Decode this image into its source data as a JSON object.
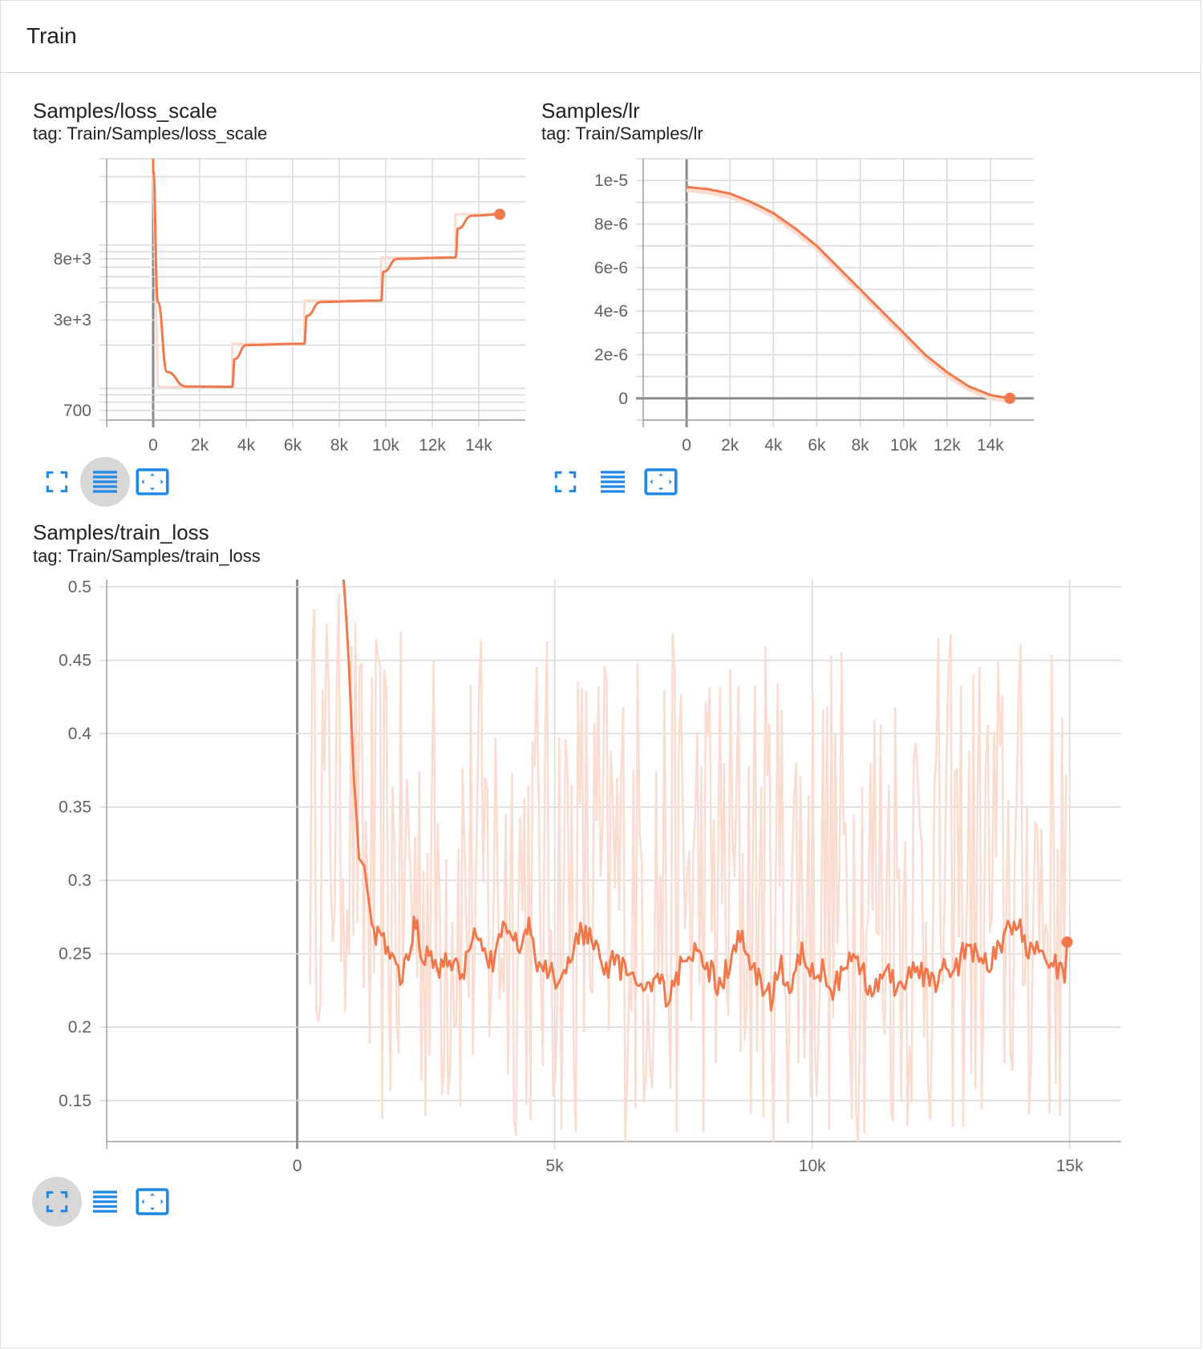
{
  "header": {
    "title": "Train"
  },
  "colors": {
    "series": "#f0784b",
    "raw": "#fbdcd1",
    "grid": "#d9d9d9",
    "axis": "#9e9e9e",
    "icon": "#1e88e5"
  },
  "icons": [
    "fullscreen-icon",
    "toggle-log-scale-icon",
    "fit-domain-icon"
  ],
  "cards": [
    {
      "title": "Samples/loss_scale",
      "tag": "tag: Train/Samples/loss_scale"
    },
    {
      "title": "Samples/lr",
      "tag": "tag: Train/Samples/lr"
    },
    {
      "title": "Samples/train_loss",
      "tag": "tag: Train/Samples/train_loss"
    }
  ],
  "chart_data": [
    {
      "type": "line",
      "title": "Samples/loss_scale",
      "x_scale": "linear",
      "y_scale": "log",
      "xlim": [
        -2000,
        16000
      ],
      "ylim": [
        600,
        40000
      ],
      "x_tick_labels": [
        "0",
        "2k",
        "4k",
        "6k",
        "8k",
        "10k",
        "12k",
        "14k"
      ],
      "y_tick_labels": [
        "700",
        "3e+3",
        "8e+3"
      ],
      "series": [
        {
          "values_smoothed": [
            [
              0,
              32768
            ],
            [
              200,
              4000
            ],
            [
              600,
              1300
            ],
            [
              1400,
              1030
            ],
            [
              3400,
              1024
            ],
            [
              3500,
              1600
            ],
            [
              4000,
              2000
            ],
            [
              6500,
              2048
            ],
            [
              6600,
              3200
            ],
            [
              7200,
              4000
            ],
            [
              9800,
              4096
            ],
            [
              9900,
              6500
            ],
            [
              10500,
              8000
            ],
            [
              13000,
              8192
            ],
            [
              13100,
              13000
            ],
            [
              13700,
              16000
            ],
            [
              14900,
              16384
            ]
          ],
          "values_raw": [
            [
              0,
              32768
            ],
            [
              200,
              1024
            ],
            [
              3400,
              1024
            ],
            [
              3400,
              2048
            ],
            [
              6500,
              2048
            ],
            [
              6500,
              4096
            ],
            [
              9800,
              4096
            ],
            [
              9800,
              8192
            ],
            [
              13000,
              8192
            ],
            [
              13000,
              16384
            ],
            [
              14900,
              16384
            ]
          ]
        }
      ]
    },
    {
      "type": "line",
      "title": "Samples/lr",
      "x_scale": "linear",
      "y_scale": "linear",
      "xlim": [
        -2000,
        16000
      ],
      "ylim": [
        -1e-06,
        1.1e-05
      ],
      "x_tick_labels": [
        "0",
        "2k",
        "4k",
        "6k",
        "8k",
        "10k",
        "12k",
        "14k"
      ],
      "y_tick_labels": [
        "0",
        "2e-6",
        "4e-6",
        "6e-6",
        "8e-6",
        "1e-5"
      ],
      "series": [
        {
          "x": [
            0,
            1000,
            2000,
            3000,
            4000,
            5000,
            6000,
            7000,
            8000,
            9000,
            10000,
            11000,
            12000,
            13000,
            14000,
            14900
          ],
          "y": [
            9.7e-06,
            9.6e-06,
            9.4e-06,
            9e-06,
            8.5e-06,
            7.8e-06,
            7e-06,
            6e-06,
            5e-06,
            4e-06,
            3e-06,
            2e-06,
            1.2e-06,
            5.5e-07,
            1.5e-07,
            0
          ]
        }
      ]
    },
    {
      "type": "line",
      "title": "Samples/train_loss",
      "x_scale": "linear",
      "y_scale": "linear",
      "xlim": [
        -3700,
        16000
      ],
      "ylim": [
        0.122,
        0.505
      ],
      "x_tick_labels": [
        "0",
        "5k",
        "10k",
        "15k"
      ],
      "y_tick_labels": [
        "0.15",
        "0.2",
        "0.25",
        "0.3",
        "0.35",
        "0.4",
        "0.45",
        "0.5"
      ],
      "series": [
        {
          "x": [
            900,
            1000,
            1050,
            1100,
            1150,
            1200,
            1300,
            1450,
            1600,
            1800,
            2000,
            2200,
            2300,
            2400,
            2600,
            2800,
            3000,
            3200,
            3400,
            3600,
            3800,
            4000,
            4200,
            4400,
            4500,
            4700,
            4900,
            5100,
            5300,
            5500,
            5600,
            5800,
            6000,
            6200,
            6400,
            6600,
            6800,
            7000,
            7200,
            7400,
            7600,
            7800,
            8000,
            8200,
            8400,
            8600,
            8800,
            9000,
            9200,
            9400,
            9600,
            9800,
            10000,
            10200,
            10400,
            10600,
            10800,
            11000,
            11200,
            11400,
            11600,
            11800,
            12000,
            12200,
            12400,
            12600,
            12800,
            13000,
            13200,
            13400,
            13600,
            13800,
            14000,
            14200,
            14400,
            14600,
            14800,
            14900,
            14950
          ],
          "y": [
            0.51,
            0.45,
            0.41,
            0.37,
            0.345,
            0.315,
            0.31,
            0.27,
            0.26,
            0.255,
            0.235,
            0.25,
            0.275,
            0.25,
            0.25,
            0.24,
            0.245,
            0.235,
            0.265,
            0.255,
            0.24,
            0.265,
            0.26,
            0.255,
            0.27,
            0.24,
            0.235,
            0.235,
            0.24,
            0.265,
            0.265,
            0.25,
            0.24,
            0.245,
            0.235,
            0.23,
            0.225,
            0.235,
            0.215,
            0.235,
            0.255,
            0.25,
            0.24,
            0.225,
            0.245,
            0.26,
            0.245,
            0.23,
            0.22,
            0.24,
            0.23,
            0.255,
            0.235,
            0.24,
            0.225,
            0.235,
            0.25,
            0.235,
            0.225,
            0.24,
            0.23,
            0.225,
            0.245,
            0.235,
            0.23,
            0.24,
            0.24,
            0.255,
            0.25,
            0.24,
            0.255,
            0.265,
            0.27,
            0.255,
            0.25,
            0.245,
            0.24,
            0.235,
            0.258
          ],
          "raw_range": [
            0.12,
            0.47
          ]
        }
      ]
    }
  ]
}
